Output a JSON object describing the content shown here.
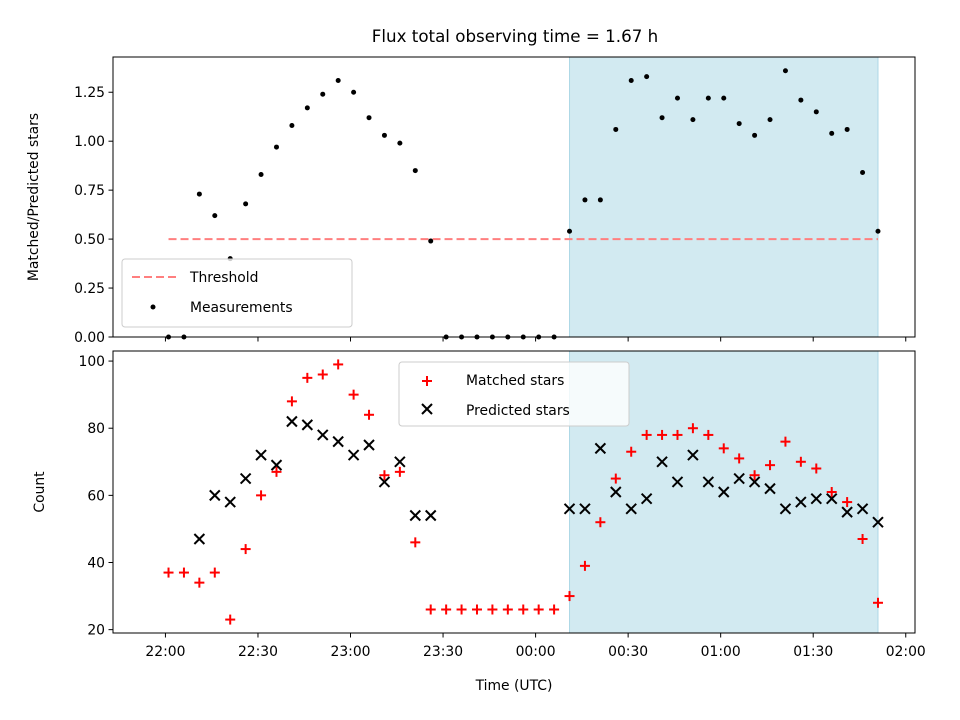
{
  "title": "Flux total observing time = 1.67 h",
  "colors": {
    "highlight": "#add8e6",
    "threshold": "#ff7f7f",
    "measurement": "#000000",
    "matched": "#ff0000",
    "predicted": "#000000"
  },
  "chart_data": [
    {
      "type": "scatter",
      "ylabel": "Matched/Predicted stars",
      "ylim": [
        0,
        1.43
      ],
      "yticks": [
        "0.00",
        "0.25",
        "0.50",
        "0.75",
        "1.00",
        "1.25"
      ],
      "highlight_span": {
        "x_start": "00:11",
        "x_end": "01:51"
      },
      "legend": {
        "placement": "lower-left",
        "entries": [
          "Threshold",
          "Measurements"
        ]
      },
      "series": [
        {
          "name": "Threshold",
          "kind": "dashed-line",
          "x": [
            "22:01",
            "01:51"
          ],
          "y": [
            0.5,
            0.5
          ]
        },
        {
          "name": "Measurements",
          "kind": "points",
          "x": [
            "22:01",
            "22:06",
            "22:11",
            "22:16",
            "22:21",
            "22:26",
            "22:31",
            "22:36",
            "22:41",
            "22:46",
            "22:51",
            "22:56",
            "23:01",
            "23:06",
            "23:11",
            "23:16",
            "23:21",
            "23:26",
            "23:31",
            "23:36",
            "23:41",
            "23:46",
            "23:51",
            "23:56",
            "00:01",
            "00:06",
            "00:11",
            "00:16",
            "00:21",
            "00:26",
            "00:31",
            "00:36",
            "00:41",
            "00:46",
            "00:51",
            "00:56",
            "01:01",
            "01:06",
            "01:11",
            "01:16",
            "01:21",
            "01:26",
            "01:31",
            "01:36",
            "01:41",
            "01:46",
            "01:51"
          ],
          "y": [
            0,
            0,
            0.73,
            0.62,
            0.4,
            0.68,
            0.83,
            0.97,
            1.08,
            1.17,
            1.24,
            1.31,
            1.25,
            1.12,
            1.03,
            0.99,
            0.85,
            0.49,
            0,
            0,
            0,
            0,
            0,
            0,
            0,
            0,
            0.54,
            0.7,
            0.7,
            1.06,
            1.31,
            1.33,
            1.12,
            1.22,
            1.11,
            1.22,
            1.22,
            1.09,
            1.03,
            1.11,
            1.36,
            1.21,
            1.15,
            1.04,
            1.06,
            0.84,
            0.54
          ]
        }
      ]
    },
    {
      "type": "scatter",
      "xlabel": "Time (UTC)",
      "ylabel": "Count",
      "ylim": [
        19,
        103
      ],
      "yticks": [
        "20",
        "40",
        "60",
        "80",
        "100"
      ],
      "xticks": [
        "22:00",
        "22:30",
        "23:00",
        "23:30",
        "00:00",
        "00:30",
        "01:00",
        "01:30",
        "02:00"
      ],
      "highlight_span": {
        "x_start": "00:11",
        "x_end": "01:51"
      },
      "legend": {
        "placement": "upper-center",
        "entries": [
          "Matched stars",
          "Predicted stars"
        ]
      },
      "series": [
        {
          "name": "Matched stars",
          "marker": "+",
          "x": [
            "22:01",
            "22:06",
            "22:11",
            "22:16",
            "22:21",
            "22:26",
            "22:31",
            "22:36",
            "22:41",
            "22:46",
            "22:51",
            "22:56",
            "23:01",
            "23:06",
            "23:11",
            "23:16",
            "23:21",
            "23:26",
            "23:31",
            "23:36",
            "23:41",
            "23:46",
            "23:51",
            "23:56",
            "00:01",
            "00:06",
            "00:11",
            "00:16",
            "00:21",
            "00:26",
            "00:31",
            "00:36",
            "00:41",
            "00:46",
            "00:51",
            "00:56",
            "01:01",
            "01:06",
            "01:11",
            "01:16",
            "01:21",
            "01:26",
            "01:31",
            "01:36",
            "01:41",
            "01:46",
            "01:51"
          ],
          "y": [
            37,
            37,
            34,
            37,
            23,
            44,
            60,
            67,
            88,
            95,
            96,
            99,
            90,
            84,
            66,
            67,
            46,
            26,
            26,
            26,
            26,
            26,
            26,
            26,
            26,
            26,
            30,
            39,
            52,
            65,
            73,
            78,
            78,
            78,
            80,
            78,
            74,
            71,
            66,
            69,
            76,
            70,
            68,
            61,
            58,
            47,
            28
          ]
        },
        {
          "name": "Predicted stars",
          "marker": "x",
          "x": [
            "22:11",
            "22:16",
            "22:21",
            "22:26",
            "22:31",
            "22:36",
            "22:41",
            "22:46",
            "22:51",
            "22:56",
            "23:01",
            "23:06",
            "23:11",
            "23:16",
            "23:21",
            "23:26",
            "00:11",
            "00:16",
            "00:21",
            "00:26",
            "00:31",
            "00:36",
            "00:41",
            "00:46",
            "00:51",
            "00:56",
            "01:01",
            "01:06",
            "01:11",
            "01:16",
            "01:21",
            "01:26",
            "01:31",
            "01:36",
            "01:41",
            "01:46",
            "01:51"
          ],
          "y": [
            47,
            60,
            58,
            65,
            72,
            69,
            82,
            81,
            78,
            76,
            72,
            75,
            64,
            70,
            54,
            54,
            56,
            56,
            74,
            61,
            56,
            59,
            70,
            64,
            72,
            64,
            61,
            65,
            64,
            62,
            56,
            58,
            59,
            59,
            55,
            56,
            52
          ]
        }
      ]
    }
  ]
}
